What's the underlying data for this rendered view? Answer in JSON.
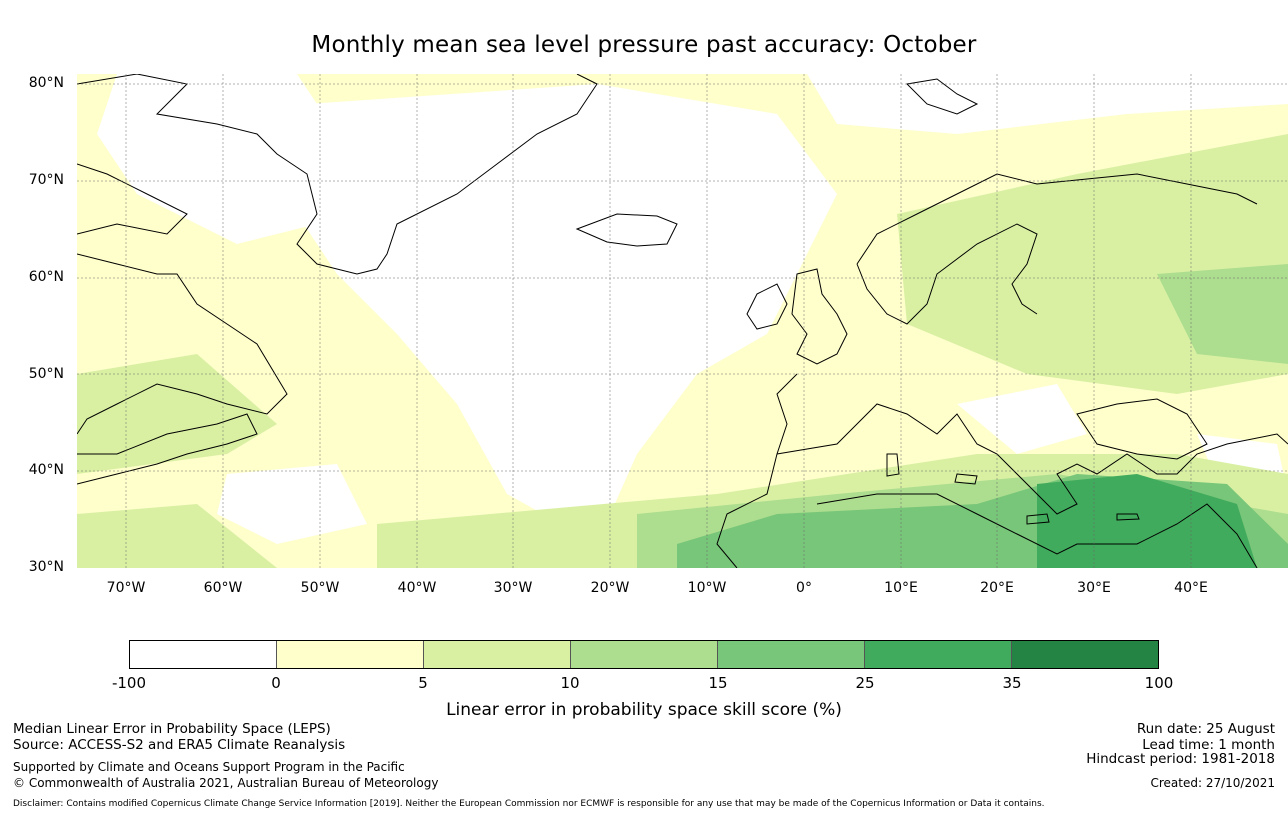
{
  "title": "Monthly mean sea level pressure past accuracy: October",
  "map": {
    "lat_labels": [
      "80°N",
      "70°N",
      "60°N",
      "50°N",
      "40°N",
      "30°N"
    ],
    "lon_labels": [
      "70°W",
      "60°W",
      "50°W",
      "40°W",
      "30°W",
      "20°W",
      "10°W",
      "0°",
      "10°E",
      "20°E",
      "30°E",
      "40°E"
    ],
    "lat_range": [
      30,
      81
    ],
    "lon_range": [
      -75,
      50
    ],
    "gridlines": true
  },
  "colorbar": {
    "ticks": [
      "-100",
      "0",
      "5",
      "10",
      "15",
      "25",
      "35",
      "100"
    ],
    "colors": [
      "#ffffff",
      "#ffffcc",
      "#d9f0a3",
      "#addd8e",
      "#78c679",
      "#41ab5d",
      "#238443"
    ],
    "label": "Linear error in probability space skill score (%)"
  },
  "footer": {
    "left_line1": "Median Linear Error in Probability Space (LEPS)",
    "left_line2": "Source: ACCESS-S2 and ERA5 Climate Reanalysis",
    "left_line3": "Supported by Climate and Oceans Support Program in the Pacific",
    "left_line4": "© Commonwealth of Australia 2021, Australian Bureau of Meteorology",
    "right_line1": "Run date: 25 August",
    "right_line2": "Lead time: 1 month",
    "right_line3": "Hindcast period: 1981-2018",
    "right_line4": "Created: 27/10/2021",
    "disclaimer": "Disclaimer: Contains modified Copernicus Climate Change Service Information [2019]. Neither the European Commission nor ECMWF is responsible for any use that may be made of the Copernicus Information or Data it contains."
  }
}
